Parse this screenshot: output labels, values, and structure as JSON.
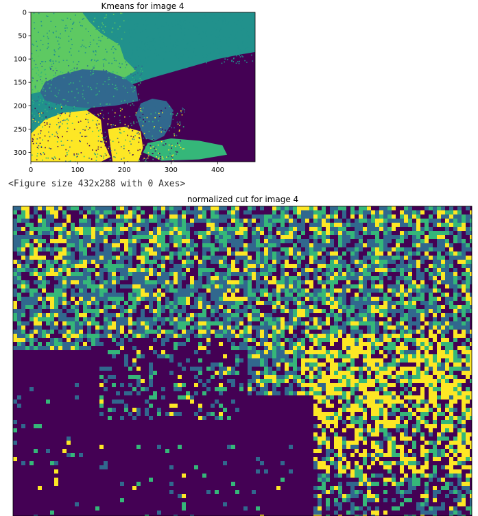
{
  "output_text": "<Figure size 432x288 with 0 Axes>",
  "colors": {
    "viridis_0": "#440154",
    "viridis_1": "#31688e",
    "viridis_2": "#35b779",
    "viridis_3": "#fde725",
    "kmeans_teal": "#21918c",
    "kmeans_green": "#5ec962"
  },
  "chart_data": [
    {
      "type": "heatmap",
      "title": "Kmeans for image 4",
      "xlabel": "",
      "ylabel": "",
      "xlim": [
        0,
        480
      ],
      "ylim": [
        320,
        0
      ],
      "xticks": [
        0,
        100,
        200,
        300,
        400
      ],
      "yticks": [
        0,
        50,
        100,
        150,
        200,
        250,
        300
      ],
      "colormap": "viridis",
      "clusters": 5,
      "grid": false
    },
    {
      "type": "heatmap",
      "title": "normalized cut for image 4",
      "xlabel": "",
      "ylabel": "",
      "colormap": "viridis",
      "axes_ticks": false,
      "grid": false
    }
  ]
}
